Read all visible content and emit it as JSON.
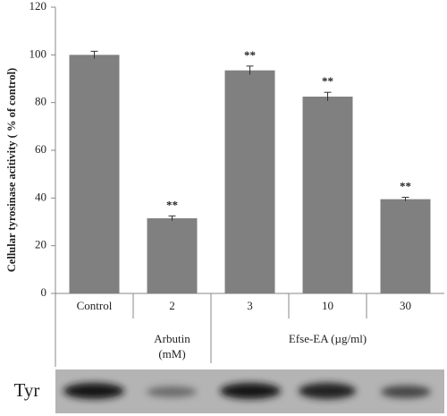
{
  "chart_data": {
    "type": "bar",
    "ylabel": "Cellular tyrosinase acitivity ( % of control)",
    "categories": [
      "Control",
      "2",
      "3",
      "10",
      "30"
    ],
    "values": [
      100,
      31.5,
      93.5,
      82.5,
      39.5
    ],
    "errors": [
      1.5,
      1,
      1.8,
      1.8,
      0.8
    ],
    "annotations": [
      null,
      "**",
      "**",
      "**",
      "**"
    ],
    "color": "#808080",
    "ylim": [
      0,
      120
    ],
    "yticks": [
      0,
      20,
      40,
      60,
      80,
      100,
      120
    ],
    "groups": [
      [
        "Arbutin",
        "(mM)"
      ],
      [
        "Efse-EA (µg/ml)"
      ]
    ],
    "blot_label": "Tyr"
  }
}
